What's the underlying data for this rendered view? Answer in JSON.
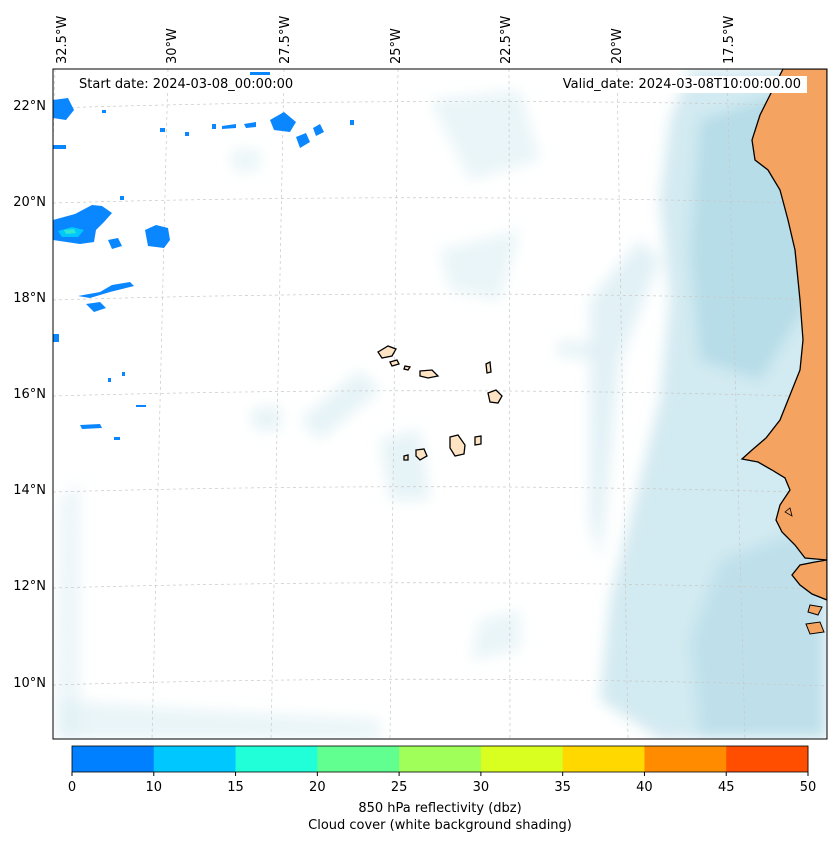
{
  "start_date": "Start date: 2024-03-08_00:00:00",
  "valid_date": "Valid_date: 2024-03-08T10:00:00.00",
  "lon_labels": [
    "32.5°W",
    "30°W",
    "27.5°W",
    "25°W",
    "22.5°W",
    "20°W",
    "17.5°W"
  ],
  "lat_labels": [
    "22°N",
    "20°N",
    "18°N",
    "16°N",
    "14°N",
    "12°N",
    "10°N"
  ],
  "colorbar": {
    "ticks": [
      "0",
      "10",
      "15",
      "20",
      "25",
      "30",
      "35",
      "40",
      "45",
      "50"
    ],
    "colors": [
      "#0080ff",
      "#00c8ff",
      "#20ffd8",
      "#60ff90",
      "#a0ff58",
      "#d8ff20",
      "#ffd800",
      "#ff8c00",
      "#ff4e00"
    ],
    "label_line1": "850 hPa reflectivity (dbz)",
    "label_line2": "Cloud cover (white background shading)"
  },
  "colors": {
    "land": "#f4a460",
    "cloud": "#add8e6",
    "echo_blue": "#0a86ff",
    "echo_cyan": "#4fd0e0"
  }
}
